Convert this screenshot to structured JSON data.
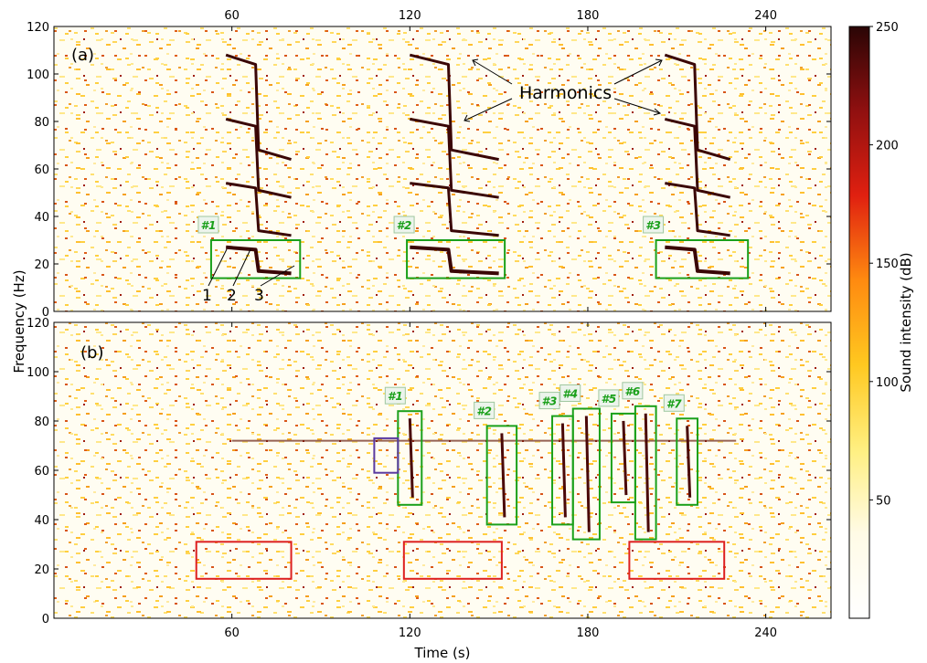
{
  "chart_data": [
    {
      "panel_label": "(a)",
      "type": "heatmap",
      "xlim": [
        0,
        262
      ],
      "ylim": [
        0,
        120
      ],
      "x_ticks": [
        60,
        120,
        180,
        240
      ],
      "y_ticks": [
        0,
        20,
        40,
        60,
        80,
        100,
        120
      ],
      "xlabel": "",
      "ylabel": "Frequency (Hz)",
      "annotation": "Harmonics",
      "point_labels": [
        "1",
        "2",
        "3"
      ],
      "call_boxes": [
        {
          "label": "#1",
          "x": [
            53,
            83
          ],
          "y": [
            14,
            30
          ],
          "color": "#1aa01a"
        },
        {
          "label": "#2",
          "x": [
            119,
            152
          ],
          "y": [
            14,
            30
          ],
          "color": "#1aa01a"
        },
        {
          "label": "#3",
          "x": [
            203,
            234
          ],
          "y": [
            14,
            30
          ],
          "color": "#1aa01a"
        }
      ],
      "calls": [
        {
          "x0": 58,
          "x1": 68,
          "f": 27,
          "x2": 80,
          "f2": 17
        },
        {
          "x0": 120,
          "x1": 133,
          "f": 27,
          "x2": 150,
          "f2": 17
        },
        {
          "x0": 206,
          "x1": 216,
          "f": 27,
          "x2": 228,
          "f2": 17
        }
      ]
    },
    {
      "panel_label": "(b)",
      "type": "heatmap",
      "xlim": [
        0,
        262
      ],
      "ylim": [
        0,
        120
      ],
      "x_ticks": [
        60,
        120,
        180,
        240
      ],
      "y_ticks": [
        0,
        20,
        40,
        60,
        80,
        100,
        120
      ],
      "xlabel": "Time (s)",
      "ylabel": "Frequency (Hz)",
      "call_boxes": [
        {
          "label": "#1",
          "x": [
            116,
            124
          ],
          "y": [
            46,
            84
          ],
          "color": "#1aa01a"
        },
        {
          "label": "#2",
          "x": [
            146,
            156
          ],
          "y": [
            38,
            78
          ],
          "color": "#1aa01a"
        },
        {
          "label": "#3",
          "x": [
            168,
            175
          ],
          "y": [
            38,
            82
          ],
          "color": "#1aa01a"
        },
        {
          "label": "#4",
          "x": [
            175,
            184
          ],
          "y": [
            32,
            85
          ],
          "color": "#1aa01a"
        },
        {
          "label": "#5",
          "x": [
            188,
            196
          ],
          "y": [
            47,
            83
          ],
          "color": "#1aa01a"
        },
        {
          "label": "#6",
          "x": [
            196,
            203
          ],
          "y": [
            32,
            86
          ],
          "color": "#1aa01a"
        },
        {
          "label": "#7",
          "x": [
            210,
            217
          ],
          "y": [
            46,
            81
          ],
          "color": "#1aa01a"
        }
      ],
      "other_boxes": [
        {
          "x": [
            108,
            116
          ],
          "y": [
            59,
            73
          ],
          "color": "#5a3aa0"
        },
        {
          "x": [
            48,
            80
          ],
          "y": [
            16,
            31
          ],
          "color": "#dd2020"
        },
        {
          "x": [
            118,
            151
          ],
          "y": [
            16,
            31
          ],
          "color": "#dd2020"
        },
        {
          "x": [
            194,
            226
          ],
          "y": [
            16,
            31
          ],
          "color": "#dd2020"
        }
      ],
      "horizontal_line_hz": 72
    }
  ],
  "colorbar": {
    "label": "Sound intensity (dB)",
    "ticks": [
      50,
      100,
      150,
      200,
      250
    ],
    "range": [
      0,
      250
    ],
    "colors": [
      "#ffffff",
      "#fffbe6",
      "#ffef80",
      "#ffc820",
      "#ff8a10",
      "#e02010",
      "#901010",
      "#2a0505"
    ]
  }
}
